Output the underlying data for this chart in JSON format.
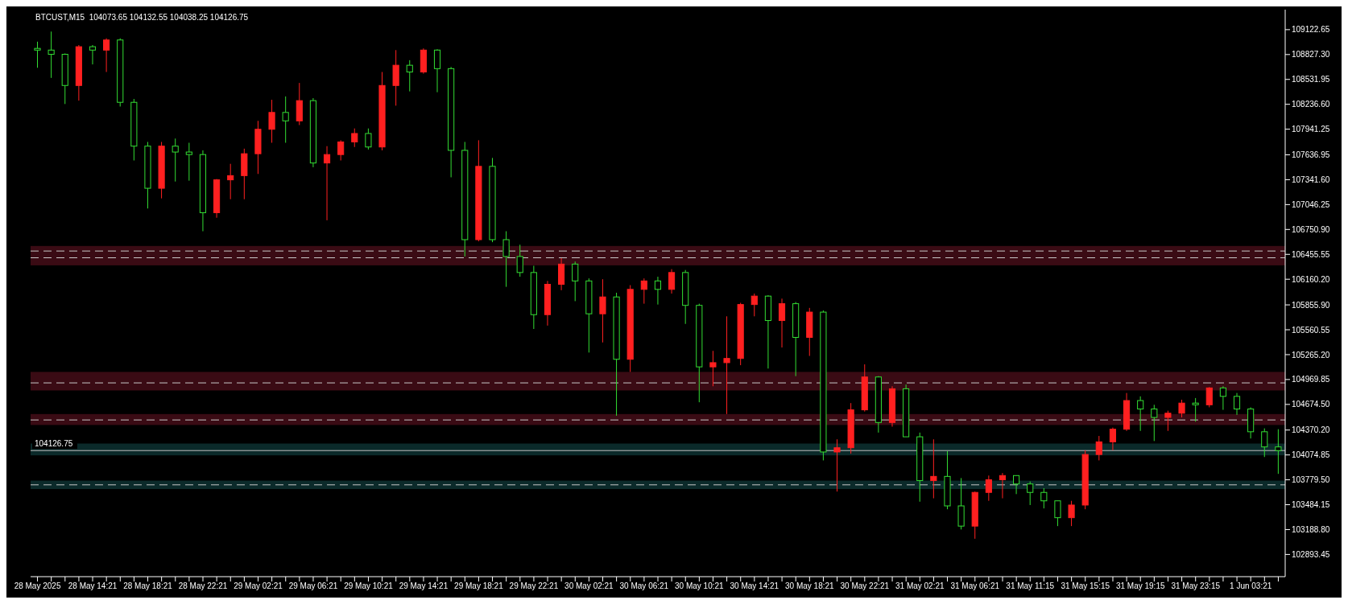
{
  "chart_data": {
    "type": "candlestick",
    "title": "BTCUST,M15  104073.65 104132.55 104038.25 104126.75",
    "categories": [
      "28 May 2025",
      null,
      null,
      null,
      "28 May 14:21",
      null,
      null,
      null,
      "28 May 18:21",
      null,
      null,
      null,
      "28 May 22:21",
      null,
      null,
      null,
      "29 May 02:21",
      null,
      null,
      null,
      "29 May 06:21",
      null,
      null,
      null,
      "29 May 10:21",
      null,
      null,
      null,
      "29 May 14:21",
      null,
      null,
      null,
      "29 May 18:21",
      null,
      null,
      null,
      "29 May 22:21",
      null,
      null,
      null,
      "30 May 02:21",
      null,
      null,
      null,
      "30 May 06:21",
      null,
      null,
      null,
      "30 May 10:21",
      null,
      null,
      null,
      "30 May 14:21",
      null,
      null,
      null,
      "30 May 18:21",
      null,
      null,
      null,
      "30 May 22:21",
      null,
      null,
      null,
      "31 May 02:21",
      null,
      null,
      null,
      "31 May 06:21",
      null,
      null,
      null,
      "31 May 11:15",
      null,
      null,
      null,
      "31 May 15:15",
      null,
      null,
      null,
      "31 May 19:15",
      null,
      null,
      null,
      "31 May 23:15",
      null,
      null,
      null,
      "1 Jun 03:21",
      null,
      null
    ],
    "ohlc": [
      [
        108900,
        108980,
        108670,
        108880
      ],
      [
        108880,
        109100,
        108550,
        108830
      ],
      [
        108830,
        108840,
        108240,
        108460
      ],
      [
        108460,
        108940,
        108280,
        108920
      ],
      [
        108920,
        108940,
        108710,
        108880
      ],
      [
        108880,
        109020,
        108620,
        109000
      ],
      [
        109000,
        109020,
        108210,
        108260
      ],
      [
        108260,
        108300,
        107570,
        107740
      ],
      [
        107740,
        107790,
        107000,
        107240
      ],
      [
        107240,
        107790,
        107120,
        107740
      ],
      [
        107740,
        107830,
        107320,
        107670
      ],
      [
        107670,
        107780,
        107330,
        107640
      ],
      [
        107640,
        107690,
        106730,
        106950
      ],
      [
        106950,
        107350,
        106890,
        107340
      ],
      [
        107340,
        107530,
        107110,
        107390
      ],
      [
        107390,
        107710,
        107110,
        107650
      ],
      [
        107650,
        108040,
        107410,
        107940
      ],
      [
        107940,
        108290,
        107780,
        108140
      ],
      [
        108140,
        108330,
        107780,
        108040
      ],
      [
        108040,
        108490,
        107990,
        108280
      ],
      [
        108280,
        108310,
        107490,
        107540
      ],
      [
        107540,
        107740,
        106860,
        107640
      ],
      [
        107640,
        107810,
        107570,
        107790
      ],
      [
        107790,
        107950,
        107730,
        107890
      ],
      [
        107890,
        107950,
        107700,
        107730
      ],
      [
        107730,
        108620,
        107690,
        108460
      ],
      [
        108460,
        108880,
        108220,
        108700
      ],
      [
        108700,
        108760,
        108390,
        108620
      ],
      [
        108620,
        108900,
        108600,
        108880
      ],
      [
        108880,
        108890,
        108380,
        108660
      ],
      [
        108660,
        108680,
        107370,
        107690
      ],
      [
        107690,
        107790,
        106430,
        106630
      ],
      [
        106630,
        107810,
        106610,
        107500
      ],
      [
        107500,
        107600,
        106600,
        106630
      ],
      [
        106630,
        106730,
        106070,
        106430
      ],
      [
        106430,
        106570,
        106190,
        106240
      ],
      [
        106240,
        106320,
        105570,
        105740
      ],
      [
        105740,
        106140,
        105610,
        106100
      ],
      [
        106100,
        106410,
        106030,
        106340
      ],
      [
        106340,
        106370,
        105900,
        106140
      ],
      [
        106140,
        106170,
        105290,
        105750
      ],
      [
        105750,
        106160,
        105410,
        105950
      ],
      [
        105950,
        106000,
        104540,
        105210
      ],
      [
        105210,
        106090,
        105060,
        106040
      ],
      [
        106040,
        106170,
        105870,
        106140
      ],
      [
        106140,
        106190,
        105860,
        106040
      ],
      [
        106040,
        106280,
        105990,
        106240
      ],
      [
        106240,
        106270,
        105630,
        105850
      ],
      [
        105850,
        105870,
        104700,
        105120
      ],
      [
        105120,
        105310,
        104890,
        105170
      ],
      [
        105170,
        105720,
        104560,
        105220
      ],
      [
        105220,
        105880,
        105140,
        105860
      ],
      [
        105860,
        105990,
        105720,
        105960
      ],
      [
        105960,
        105970,
        105100,
        105670
      ],
      [
        105670,
        105930,
        105350,
        105870
      ],
      [
        105870,
        105890,
        105010,
        105470
      ],
      [
        105470,
        105820,
        105250,
        105770
      ],
      [
        105770,
        105790,
        104010,
        104110
      ],
      [
        104110,
        104260,
        103640,
        104160
      ],
      [
        104160,
        104690,
        104090,
        104610
      ],
      [
        104610,
        105150,
        104590,
        105000
      ],
      [
        105000,
        105010,
        104340,
        104460
      ],
      [
        104460,
        104890,
        104410,
        104860
      ],
      [
        104860,
        104910,
        104290,
        104290
      ],
      [
        104290,
        104340,
        103520,
        103770
      ],
      [
        103770,
        104260,
        103560,
        103820
      ],
      [
        103820,
        104120,
        103430,
        103470
      ],
      [
        103470,
        103800,
        103190,
        103230
      ],
      [
        103230,
        103640,
        103080,
        103630
      ],
      [
        103630,
        103830,
        103530,
        103780
      ],
      [
        103780,
        103860,
        103560,
        103830
      ],
      [
        103830,
        103830,
        103610,
        103730
      ],
      [
        103730,
        103760,
        103480,
        103630
      ],
      [
        103630,
        103680,
        103440,
        103530
      ],
      [
        103530,
        103530,
        103230,
        103330
      ],
      [
        103330,
        103530,
        103230,
        103480
      ],
      [
        103480,
        104130,
        103430,
        104080
      ],
      [
        104080,
        104300,
        104010,
        104230
      ],
      [
        104230,
        104400,
        104130,
        104380
      ],
      [
        104380,
        104810,
        104360,
        104720
      ],
      [
        104720,
        104770,
        104360,
        104620
      ],
      [
        104620,
        104670,
        104240,
        104520
      ],
      [
        104520,
        104600,
        104360,
        104570
      ],
      [
        104570,
        104730,
        104520,
        104690
      ],
      [
        104690,
        104750,
        104470,
        104670
      ],
      [
        104670,
        104880,
        104640,
        104870
      ],
      [
        104870,
        104890,
        104610,
        104770
      ],
      [
        104770,
        104810,
        104550,
        104620
      ],
      [
        104620,
        104640,
        104270,
        104350
      ],
      [
        104350,
        104390,
        104050,
        104170
      ],
      [
        104170,
        104380,
        103850,
        104126.75
      ]
    ],
    "ylim": [
      102630,
      109360
    ],
    "yticks": [
      109122.65,
      {
        "value": 108827.3,
        "label": "108827.30"
      },
      108531.95,
      {
        "value": 108236.6,
        "label": "108236.60"
      },
      107941.25,
      107636.95,
      {
        "value": 107341.6,
        "label": "107341.60"
      },
      107046.25,
      {
        "value": 106750.9,
        "label": "106750.90"
      },
      106455.55,
      {
        "value": 106160.2,
        "label": "106160.20"
      },
      {
        "value": 105855.9,
        "label": "105855.90"
      },
      105560.55,
      {
        "value": 105265.2,
        "label": "105265.20"
      },
      104969.85,
      {
        "value": 104674.5,
        "label": "104674.50"
      },
      {
        "value": 104370.2,
        "label": "104370.20"
      },
      104074.85,
      {
        "value": 103779.5,
        "label": "103779.50"
      },
      103484.15,
      {
        "value": 103188.8,
        "label": "103188.80"
      },
      102893.45
    ],
    "bands": [
      {
        "axis": "y",
        "from": 106325,
        "to": 106555,
        "color": "#3a0b14"
      },
      {
        "axis": "y",
        "from": 104840,
        "to": 105060,
        "color": "#3a0b14"
      },
      {
        "axis": "y",
        "from": 104430,
        "to": 104560,
        "color": "#3a0b14"
      },
      {
        "axis": "y",
        "from": 104070,
        "to": 104210,
        "color": "#0b2a2a"
      },
      {
        "axis": "y",
        "from": 103670,
        "to": 103770,
        "color": "#0b2a2a"
      }
    ],
    "ref_lines": [
      {
        "axis": "y",
        "value": 106495,
        "color": "#c8c8c8",
        "line_style": "dashed"
      },
      {
        "axis": "y",
        "value": 106415,
        "color": "#c8c8c8",
        "line_style": "dashed"
      },
      {
        "axis": "y",
        "value": 104930,
        "color": "#c8c8c8",
        "line_style": "dashed"
      },
      {
        "axis": "y",
        "value": 104490,
        "color": "#c8c8c8",
        "line_style": "dashed"
      },
      {
        "axis": "y",
        "value": 103720,
        "color": "#c8c8c8",
        "line_style": "dashed"
      },
      {
        "axis": "y",
        "value": 104126.75,
        "label": "104126.75",
        "color": "#c0c0c0",
        "line_style": "solid"
      }
    ]
  }
}
